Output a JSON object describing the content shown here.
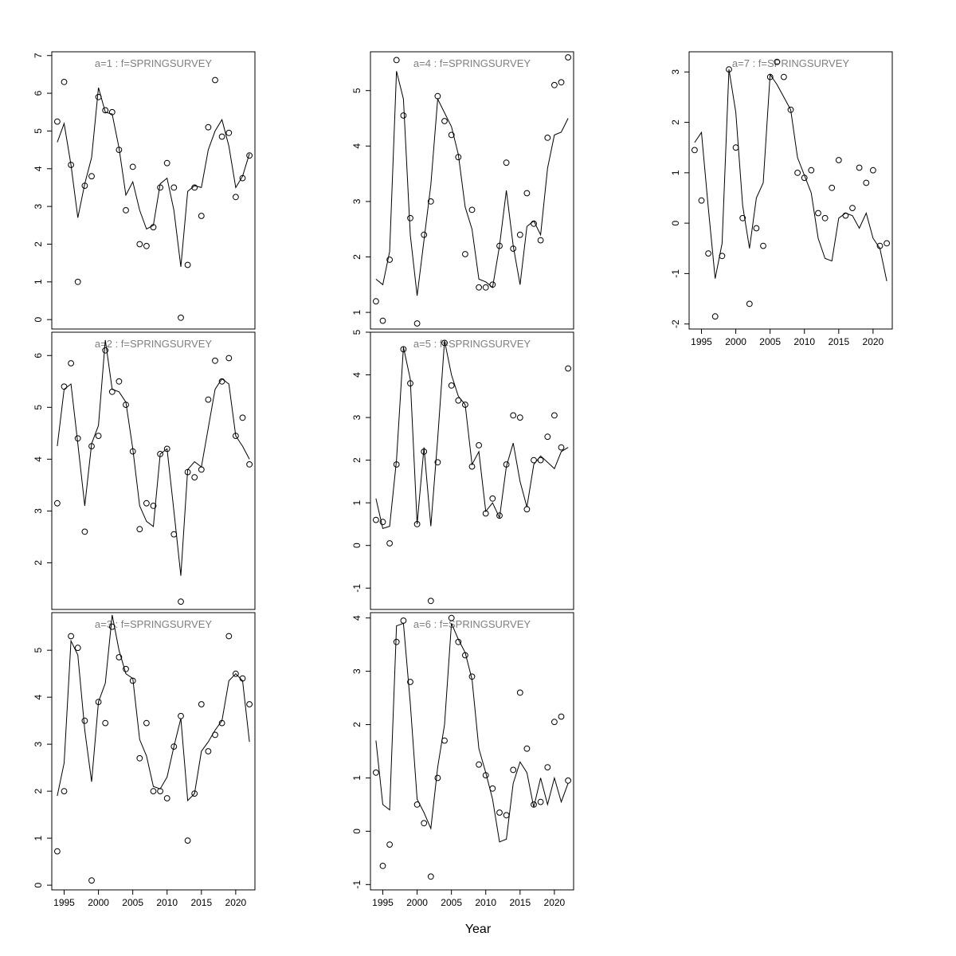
{
  "chart_data": {
    "type": "scatter",
    "title": "",
    "xlabel": "Year",
    "ylabel": "",
    "grid": false,
    "legend": "none",
    "marker": "open-circle",
    "point_color": "#000000",
    "line_color": "#000000",
    "title_color": "#7f7f7f",
    "xlim": [
      1993.2,
      2022.8
    ],
    "x_ticks": [
      1995,
      2000,
      2005,
      2010,
      2015,
      2020
    ],
    "x": [
      1994,
      1995,
      1996,
      1997,
      1998,
      1999,
      2000,
      2001,
      2002,
      2003,
      2004,
      2005,
      2006,
      2007,
      2008,
      2009,
      2010,
      2011,
      2012,
      2013,
      2014,
      2015,
      2016,
      2017,
      2018,
      2019,
      2020,
      2021,
      2022
    ],
    "panels": [
      {
        "label": "a=1 : f=SPRINGSURVEY",
        "ylim": [
          -0.25,
          7.1
        ],
        "y_ticks": [
          0,
          1,
          2,
          3,
          4,
          5,
          6,
          7
        ],
        "grid_pos": [
          0,
          0
        ],
        "show_x_labels": false,
        "points": [
          5.25,
          6.3,
          4.1,
          1.0,
          3.55,
          3.8,
          5.9,
          5.55,
          5.5,
          4.5,
          2.9,
          4.05,
          2.0,
          1.95,
          2.45,
          3.5,
          4.15,
          3.5,
          0.05,
          1.45,
          3.5,
          2.75,
          5.1,
          6.35,
          4.85,
          4.95,
          3.25,
          3.75,
          4.35
        ],
        "line": [
          4.7,
          5.2,
          4.1,
          2.7,
          3.6,
          4.3,
          6.15,
          5.5,
          5.45,
          4.55,
          3.3,
          3.65,
          2.9,
          2.4,
          2.5,
          3.6,
          3.75,
          2.9,
          1.4,
          3.4,
          3.55,
          3.5,
          4.5,
          5.0,
          5.3,
          4.6,
          3.5,
          3.8,
          4.4
        ]
      },
      {
        "label": "a=2 : f=SPRINGSURVEY",
        "ylim": [
          1.1,
          6.45
        ],
        "y_ticks": [
          2,
          3,
          4,
          5,
          6
        ],
        "grid_pos": [
          0,
          1
        ],
        "show_x_labels": false,
        "points": [
          3.15,
          5.4,
          5.85,
          4.4,
          2.6,
          4.25,
          4.45,
          6.1,
          5.3,
          5.5,
          5.05,
          4.15,
          2.65,
          3.15,
          3.1,
          4.1,
          4.2,
          2.55,
          1.25,
          3.75,
          3.65,
          3.8,
          5.15,
          5.9,
          5.5,
          5.95,
          4.45,
          4.8,
          3.9
        ],
        "line": [
          4.25,
          5.35,
          5.45,
          4.3,
          3.1,
          4.3,
          4.65,
          6.3,
          5.35,
          5.3,
          5.1,
          4.2,
          3.1,
          2.8,
          2.7,
          4.1,
          4.2,
          3.0,
          1.75,
          3.8,
          3.95,
          3.85,
          4.6,
          5.35,
          5.55,
          5.45,
          4.45,
          4.25,
          4.0
        ]
      },
      {
        "label": "a=3 : f=SPRINGSURVEY",
        "ylim": [
          -0.1,
          5.8
        ],
        "y_ticks": [
          0,
          1,
          2,
          3,
          4,
          5
        ],
        "grid_pos": [
          0,
          2
        ],
        "show_x_labels": true,
        "points": [
          0.72,
          2.0,
          5.3,
          5.05,
          3.5,
          0.1,
          3.9,
          3.45,
          5.5,
          4.85,
          4.6,
          4.35,
          2.7,
          3.45,
          2.0,
          2.0,
          1.85,
          2.95,
          3.6,
          0.95,
          1.95,
          3.85,
          2.85,
          3.2,
          3.45,
          5.3,
          4.5,
          4.4,
          3.85
        ],
        "line": [
          1.9,
          2.6,
          5.2,
          4.9,
          3.3,
          2.2,
          3.9,
          4.3,
          5.75,
          5.0,
          4.5,
          4.4,
          3.1,
          2.75,
          2.1,
          2.05,
          2.3,
          2.95,
          3.55,
          1.8,
          1.95,
          2.85,
          3.05,
          3.3,
          3.5,
          4.35,
          4.5,
          4.35,
          3.05
        ]
      },
      {
        "label": "a=4 : f=SPRINGSURVEY",
        "ylim": [
          0.7,
          5.7
        ],
        "y_ticks": [
          1,
          2,
          3,
          4,
          5
        ],
        "grid_pos": [
          1,
          0
        ],
        "show_x_labels": false,
        "points": [
          1.2,
          0.85,
          1.95,
          5.55,
          4.55,
          2.7,
          0.8,
          2.4,
          3.0,
          4.9,
          4.45,
          4.2,
          3.8,
          2.05,
          2.85,
          1.45,
          1.45,
          1.5,
          2.2,
          3.7,
          2.15,
          2.4,
          3.15,
          2.6,
          2.3,
          4.15,
          5.1,
          5.15,
          5.6
        ],
        "line": [
          1.6,
          1.5,
          2.1,
          5.35,
          4.85,
          2.4,
          1.3,
          2.3,
          3.3,
          4.85,
          4.6,
          4.35,
          3.85,
          2.9,
          2.5,
          1.6,
          1.55,
          1.45,
          2.2,
          3.2,
          2.2,
          1.5,
          2.55,
          2.65,
          2.4,
          3.6,
          4.2,
          4.25,
          4.5
        ]
      },
      {
        "label": "a=5 : f=SPRINGSURVEY",
        "ylim": [
          -1.5,
          5.0
        ],
        "y_ticks": [
          -1,
          0,
          1,
          2,
          3,
          4,
          5
        ],
        "grid_pos": [
          1,
          1
        ],
        "show_x_labels": false,
        "points": [
          0.6,
          0.55,
          0.05,
          1.9,
          4.6,
          3.8,
          0.5,
          2.2,
          -1.3,
          1.95,
          4.75,
          3.75,
          3.4,
          3.3,
          1.85,
          2.35,
          0.75,
          1.1,
          0.7,
          1.9,
          3.05,
          3.0,
          0.85,
          2.0,
          2.0,
          2.55,
          3.05,
          2.3,
          4.15
        ],
        "line": [
          1.1,
          0.4,
          0.45,
          2.0,
          4.65,
          3.9,
          0.5,
          2.3,
          0.45,
          2.5,
          4.8,
          4.0,
          3.5,
          3.3,
          1.9,
          2.2,
          0.8,
          1.0,
          0.65,
          1.85,
          2.4,
          1.5,
          0.9,
          1.9,
          2.1,
          1.95,
          1.8,
          2.2,
          2.3
        ]
      },
      {
        "label": "a=6 : f=SPRINGSURVEY",
        "ylim": [
          -1.1,
          4.1
        ],
        "y_ticks": [
          -1,
          0,
          1,
          2,
          3,
          4
        ],
        "grid_pos": [
          1,
          2
        ],
        "show_x_labels": true,
        "points": [
          1.1,
          -0.65,
          -0.25,
          3.55,
          3.95,
          2.8,
          0.5,
          0.15,
          -0.85,
          1.0,
          1.7,
          4.0,
          3.55,
          3.3,
          2.9,
          1.25,
          1.05,
          0.8,
          0.35,
          0.3,
          1.15,
          2.6,
          1.55,
          0.5,
          0.55,
          1.2,
          2.05,
          2.15,
          0.95
        ],
        "line": [
          1.7,
          0.5,
          0.4,
          3.85,
          3.9,
          2.4,
          0.6,
          0.35,
          0.05,
          1.2,
          2.0,
          3.9,
          3.6,
          3.35,
          2.85,
          1.55,
          1.1,
          0.6,
          -0.2,
          -0.15,
          0.9,
          1.3,
          1.1,
          0.45,
          1.0,
          0.5,
          1.0,
          0.55,
          0.9
        ]
      },
      {
        "label": "a=7 : f=SPRINGSURVEY",
        "ylim": [
          -2.1,
          3.4
        ],
        "y_ticks": [
          -2,
          -1,
          0,
          1,
          2,
          3
        ],
        "grid_pos": [
          2,
          0
        ],
        "show_x_labels": true,
        "points": [
          1.45,
          0.45,
          -0.6,
          -1.85,
          -0.65,
          3.05,
          1.5,
          0.1,
          -1.6,
          -0.1,
          -0.45,
          2.9,
          3.2,
          2.9,
          2.25,
          1.0,
          0.9,
          1.05,
          0.2,
          0.1,
          0.7,
          1.25,
          0.15,
          0.3,
          1.1,
          0.8,
          1.05,
          -0.45,
          -0.4
        ],
        "line": [
          1.6,
          1.8,
          0.3,
          -1.1,
          -0.4,
          3.05,
          2.2,
          0.35,
          -0.5,
          0.5,
          0.8,
          2.95,
          2.75,
          2.5,
          2.25,
          1.3,
          0.95,
          0.6,
          -0.3,
          -0.7,
          -0.75,
          0.1,
          0.2,
          0.15,
          -0.1,
          0.2,
          -0.3,
          -0.5,
          -1.15
        ]
      }
    ]
  }
}
